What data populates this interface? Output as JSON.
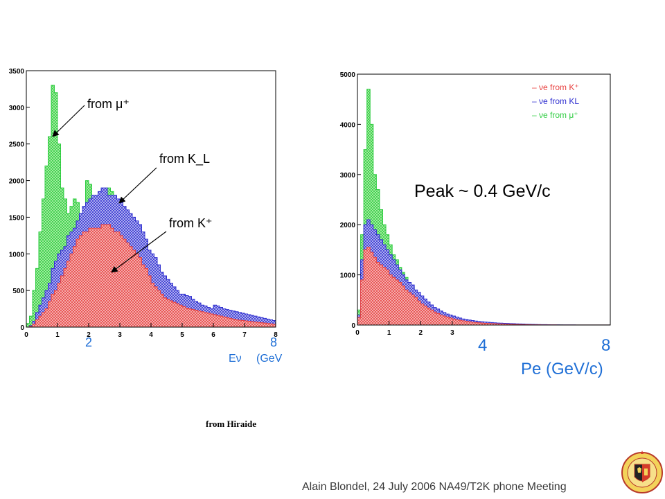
{
  "footer": {
    "text": "Alain Blondel, 24 July 2006 NA49/T2K phone Meeting"
  },
  "credit": "from Hiraide",
  "logo": {
    "icon": "university-of-geneva-seal-icon",
    "text": "SCHOLA GENEVENSIS"
  },
  "colors": {
    "green": "#2ecc40",
    "blue": "#2f2fd0",
    "red": "#e8403f",
    "blue_label": "#1f6fd6"
  },
  "chart_data": [
    {
      "type": "area",
      "title": "",
      "xlabel": "Eν",
      "ylabel": "",
      "xlim": [
        0,
        8
      ],
      "ylim": [
        0,
        3500
      ],
      "x_bin_width": 0.1,
      "x_ticks": [
        0,
        1,
        2,
        3,
        4,
        5,
        6,
        7,
        8
      ],
      "x_ticks_large": [
        "2",
        "8"
      ],
      "x_unit_label": "(GeV",
      "y_ticks": [
        0,
        500,
        1000,
        1500,
        2000,
        2500,
        3000,
        3500
      ],
      "annotations": [
        {
          "text": "from μ⁺",
          "target": "muon"
        },
        {
          "text": "from K_L",
          "target": "kl"
        },
        {
          "text": "from K⁺",
          "target": "kplus"
        }
      ],
      "series": [
        {
          "name": "from μ⁺",
          "key": "total_green",
          "values": [
            50,
            150,
            500,
            800,
            1300,
            1750,
            2200,
            2600,
            3300,
            3200,
            2500,
            1900,
            1750,
            1550,
            1650,
            1750,
            1700,
            1550,
            1650,
            2000,
            1950,
            1400,
            1700,
            1600,
            1700,
            1800,
            1900,
            1850,
            1700,
            1650,
            1600,
            1500,
            1500,
            1450,
            1350,
            1300,
            1250,
            1150,
            1000,
            900,
            800,
            780,
            700,
            650,
            600,
            550,
            500,
            450,
            420,
            380,
            340,
            350,
            280,
            270,
            240,
            250,
            220,
            230,
            210,
            200,
            180,
            170,
            160,
            150,
            140,
            130,
            120,
            110,
            100,
            95,
            90,
            85,
            80,
            75,
            70,
            60,
            55,
            50,
            45,
            40
          ]
        },
        {
          "name": "from K_L",
          "key": "total_blue",
          "values": [
            0,
            20,
            80,
            200,
            300,
            400,
            500,
            600,
            800,
            900,
            1000,
            1050,
            1100,
            1250,
            1300,
            1350,
            1450,
            1550,
            1650,
            1700,
            1750,
            1800,
            1800,
            1850,
            1900,
            1900,
            1800,
            1800,
            1800,
            1750,
            1700,
            1650,
            1600,
            1550,
            1500,
            1450,
            1400,
            1300,
            1200,
            1050,
            1000,
            950,
            850,
            750,
            700,
            650,
            600,
            550,
            500,
            450,
            450,
            430,
            420,
            380,
            350,
            330,
            300,
            290,
            270,
            250,
            300,
            290,
            270,
            250,
            240,
            230,
            220,
            210,
            200,
            190,
            180,
            170,
            160,
            150,
            140,
            130,
            120,
            110,
            100,
            90
          ]
        },
        {
          "name": "from K⁺",
          "key": "red",
          "values": [
            0,
            10,
            40,
            100,
            150,
            200,
            250,
            350,
            450,
            500,
            600,
            700,
            800,
            900,
            1000,
            1100,
            1200,
            1250,
            1300,
            1300,
            1350,
            1350,
            1350,
            1350,
            1400,
            1400,
            1400,
            1350,
            1300,
            1300,
            1250,
            1200,
            1150,
            1100,
            1050,
            1000,
            950,
            850,
            800,
            700,
            600,
            550,
            500,
            450,
            400,
            380,
            360,
            340,
            320,
            300,
            280,
            260,
            250,
            240,
            230,
            220,
            210,
            200,
            190,
            180,
            170,
            160,
            150,
            140,
            130,
            120,
            110,
            100,
            95,
            90,
            85,
            80,
            75,
            70,
            65,
            60,
            55,
            50,
            45,
            40
          ]
        }
      ]
    },
    {
      "type": "area",
      "title": "",
      "xlabel": "Pe (GeV/c)",
      "ylabel": "",
      "xlim": [
        0,
        8
      ],
      "ylim": [
        0,
        5000
      ],
      "x_bin_width": 0.1,
      "x_ticks": [
        0,
        1,
        2,
        3
      ],
      "x_ticks_large": [
        "4",
        "8"
      ],
      "y_ticks": [
        0,
        1000,
        2000,
        3000,
        4000,
        5000
      ],
      "annotation": "Peak ~ 0.4 GeV/c",
      "legend_position": "top-right",
      "legend": [
        {
          "text": "– νe from K⁺",
          "color": "#e8403f"
        },
        {
          "text": "– νe from KL",
          "color": "#2f2fd0"
        },
        {
          "text": "– νe from μ⁺",
          "color": "#2ecc40"
        }
      ],
      "series": [
        {
          "name": "νe from μ⁺",
          "key": "total_green",
          "values": [
            300,
            1800,
            3500,
            4700,
            4000,
            3000,
            2700,
            2300,
            2000,
            1800,
            1600,
            1400,
            1300,
            1150,
            1050,
            950,
            850,
            750,
            650,
            580,
            500,
            450,
            400,
            350,
            320,
            280,
            250,
            220,
            200,
            180,
            160,
            140,
            120,
            110,
            100,
            90,
            80,
            70,
            60,
            55,
            50,
            45,
            40,
            35,
            30,
            28,
            25,
            22,
            20,
            18,
            16,
            14,
            12,
            10,
            9,
            8,
            7,
            6,
            5,
            5,
            4,
            4,
            3,
            3,
            3,
            2,
            2,
            2,
            2,
            1,
            1,
            1,
            1,
            1,
            1,
            1,
            1,
            1,
            1,
            1
          ]
        },
        {
          "name": "νe from KL",
          "key": "total_blue",
          "values": [
            200,
            1300,
            2000,
            2100,
            2000,
            1900,
            1800,
            1700,
            1600,
            1500,
            1400,
            1300,
            1200,
            1100,
            1000,
            900,
            850,
            800,
            700,
            650,
            580,
            520,
            460,
            400,
            350,
            320,
            280,
            250,
            220,
            200,
            180,
            160,
            140,
            120,
            110,
            100,
            90,
            80,
            70,
            65,
            60,
            55,
            50,
            45,
            40,
            38,
            35,
            32,
            30,
            28,
            25,
            22,
            20,
            18,
            16,
            14,
            12,
            10,
            9,
            8,
            7,
            6,
            5,
            5,
            4,
            4,
            3,
            3,
            3,
            2,
            2,
            2,
            2,
            1,
            1,
            1,
            1,
            1,
            1,
            1
          ]
        },
        {
          "name": "νe from K⁺",
          "key": "red",
          "values": [
            150,
            900,
            1500,
            1550,
            1450,
            1350,
            1250,
            1200,
            1150,
            1100,
            1000,
            950,
            900,
            850,
            780,
            700,
            650,
            600,
            550,
            480,
            420,
            380,
            340,
            300,
            260,
            230,
            200,
            180,
            160,
            140,
            120,
            105,
            95,
            85,
            75,
            65,
            55,
            50,
            45,
            40,
            35,
            32,
            30,
            28,
            25,
            22,
            20,
            18,
            16,
            14,
            12,
            10,
            9,
            8,
            7,
            6,
            5,
            5,
            4,
            4,
            3,
            3,
            3,
            2,
            2,
            2,
            2,
            1,
            1,
            1,
            1,
            1,
            1,
            1,
            1,
            1,
            1,
            1,
            1,
            1
          ]
        }
      ]
    }
  ]
}
